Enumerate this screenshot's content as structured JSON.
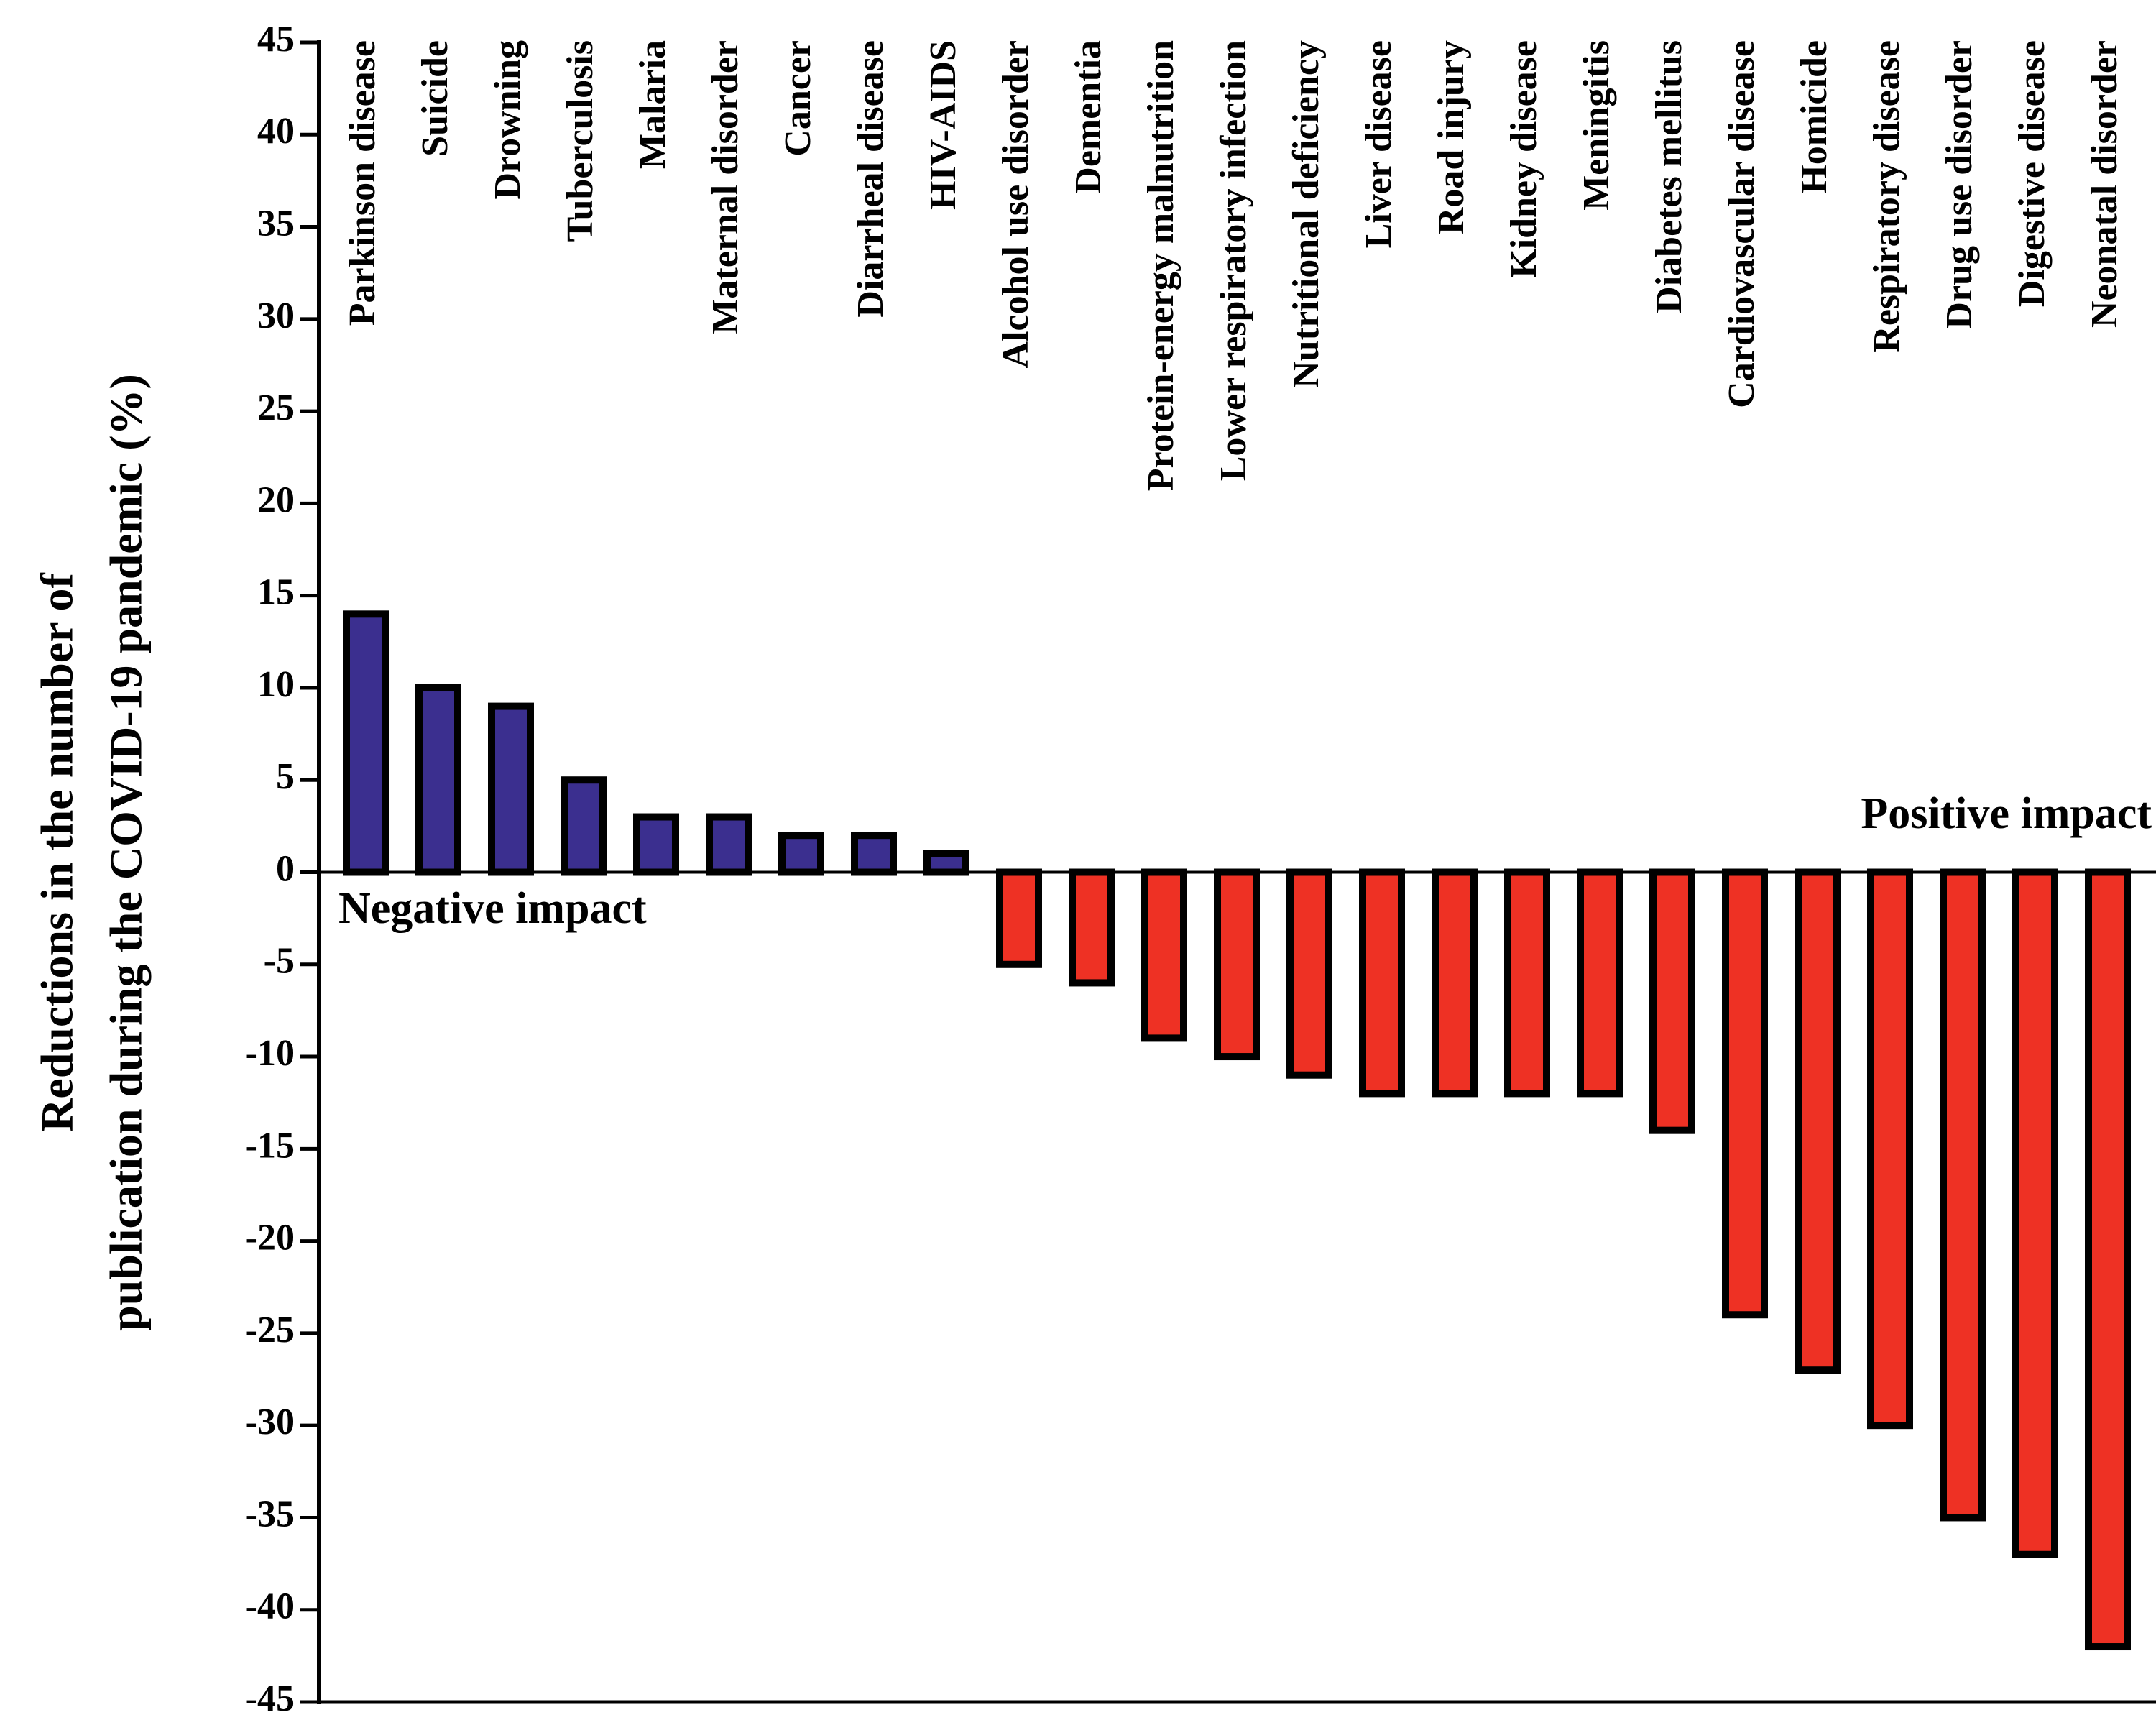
{
  "chart_data": {
    "type": "bar",
    "ylabel": [
      "Reductions in the number of",
      "publication during the COVID-19 pandemic (%)"
    ],
    "annotations": {
      "positive": "Positive impact",
      "negative": "Negative impact"
    },
    "categories": [
      "Parkinson disease",
      "Suicide",
      "Drowning",
      "Tuberculosis",
      "Malaria",
      "Maternal disorder",
      "Cancer",
      "Diarrheal disease",
      "HIV-AIDS",
      "Alcohol use disorder",
      "Dementia",
      "Protein-energy malnutrition",
      "Lower respiratory infection",
      "Nutritional deficiency",
      "Liver disease",
      "Road injury",
      "Kidney disease",
      "Meningitis",
      "Diabetes mellitus",
      "Cardiovascular disease",
      "Homicide",
      "Respiratory disease",
      "Drug use disorder",
      "Digestive disease",
      "Neonatal disorder"
    ],
    "values": [
      14,
      10,
      9,
      5,
      3,
      3,
      2,
      2,
      1,
      -5,
      -6,
      -9,
      -10,
      -11,
      -12,
      -12,
      -12,
      -12,
      -14,
      -24,
      -27,
      -30,
      -35,
      -37,
      -42
    ],
    "colors": {
      "positive": "#3b2f8f",
      "negative": "#ee3124"
    },
    "ylim": [
      -45,
      45
    ],
    "yticks": [
      -45,
      -40,
      -35,
      -30,
      -25,
      -20,
      -15,
      -10,
      -5,
      0,
      5,
      10,
      15,
      20,
      25,
      30,
      35,
      40,
      45
    ],
    "grid": false
  }
}
